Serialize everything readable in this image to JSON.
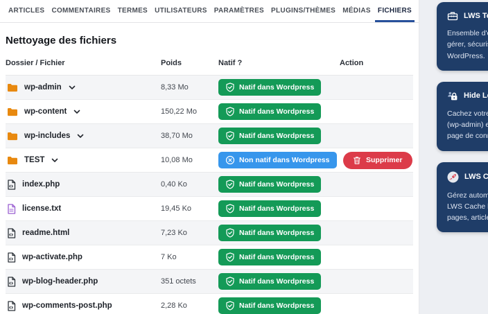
{
  "nav": {
    "tabs": [
      {
        "label": "ARTICLES"
      },
      {
        "label": "COMMENTAIRES"
      },
      {
        "label": "TERMES"
      },
      {
        "label": "UTILISATEURS"
      },
      {
        "label": "PARAMÈTRES"
      },
      {
        "label": "PLUGINS/THÈMES"
      },
      {
        "label": "MÉDIAS"
      },
      {
        "label": "FICHIERS"
      }
    ],
    "active_index": 7
  },
  "page": {
    "title": "Nettoyage des fichiers"
  },
  "table": {
    "headers": [
      "Dossier / Fichier",
      "Poids",
      "Natif ?",
      "Action"
    ],
    "badge_native": "Natif dans Wordpress",
    "badge_not_native": "Non natif dans Wordpress",
    "delete_label": "Supprimer",
    "rows": [
      {
        "name": "wp-admin",
        "icon": "folder-icon",
        "expandable": true,
        "size": "8,33 Mo",
        "native": true
      },
      {
        "name": "wp-content",
        "icon": "folder-icon",
        "expandable": true,
        "size": "150,22 Mo",
        "native": true
      },
      {
        "name": "wp-includes",
        "icon": "folder-icon",
        "expandable": true,
        "size": "38,70 Mo",
        "native": true
      },
      {
        "name": "TEST",
        "icon": "folder-icon",
        "expandable": true,
        "size": "10,08 Mo",
        "native": false,
        "action": "Supprimer"
      },
      {
        "name": "index.php",
        "icon": "file-code-icon",
        "expandable": false,
        "size": "0,40 Ko",
        "native": true
      },
      {
        "name": "license.txt",
        "icon": "file-text-icon",
        "expandable": false,
        "size": "19,45 Ko",
        "native": true
      },
      {
        "name": "readme.html",
        "icon": "file-code-icon",
        "expandable": false,
        "size": "7,23 Ko",
        "native": true
      },
      {
        "name": "wp-activate.php",
        "icon": "file-code-icon",
        "expandable": false,
        "size": "7 Ko",
        "native": true
      },
      {
        "name": "wp-blog-header.php",
        "icon": "file-code-icon",
        "expandable": false,
        "size": "351 octets",
        "native": true
      },
      {
        "name": "wp-comments-post.php",
        "icon": "file-code-icon",
        "expandable": false,
        "size": "2,28 Ko",
        "native": true
      }
    ]
  },
  "sidebar": {
    "cards": [
      {
        "title": "LWS Tools",
        "icon": "toolbox-icon",
        "lines": [
          "Ensemble d'out",
          "gérer, sécurise",
          "WordPress."
        ]
      },
      {
        "title": "Hide Login",
        "icon": "lock-user-icon",
        "lines": [
          "Cachez votre p",
          "(wp-admin) et",
          "page de conne"
        ]
      },
      {
        "title": "LWS Cache",
        "icon": "rocket-icon",
        "lines": [
          "Gérez automat",
          "LWS Cache lors",
          "pages, articles,"
        ]
      }
    ]
  },
  "colors": {
    "badge_green": "#149a57",
    "badge_blue": "#3796ec",
    "delete_red": "#dc3b49",
    "navy_underline": "#27509b",
    "folder_orange": "#e8890f",
    "file_purple": "#9a5fd1",
    "file_dark": "#2e343b",
    "card_navy": "#1f3d68",
    "sidebar_bg": "#edeff3",
    "row_alt": "#f4f5f7"
  }
}
